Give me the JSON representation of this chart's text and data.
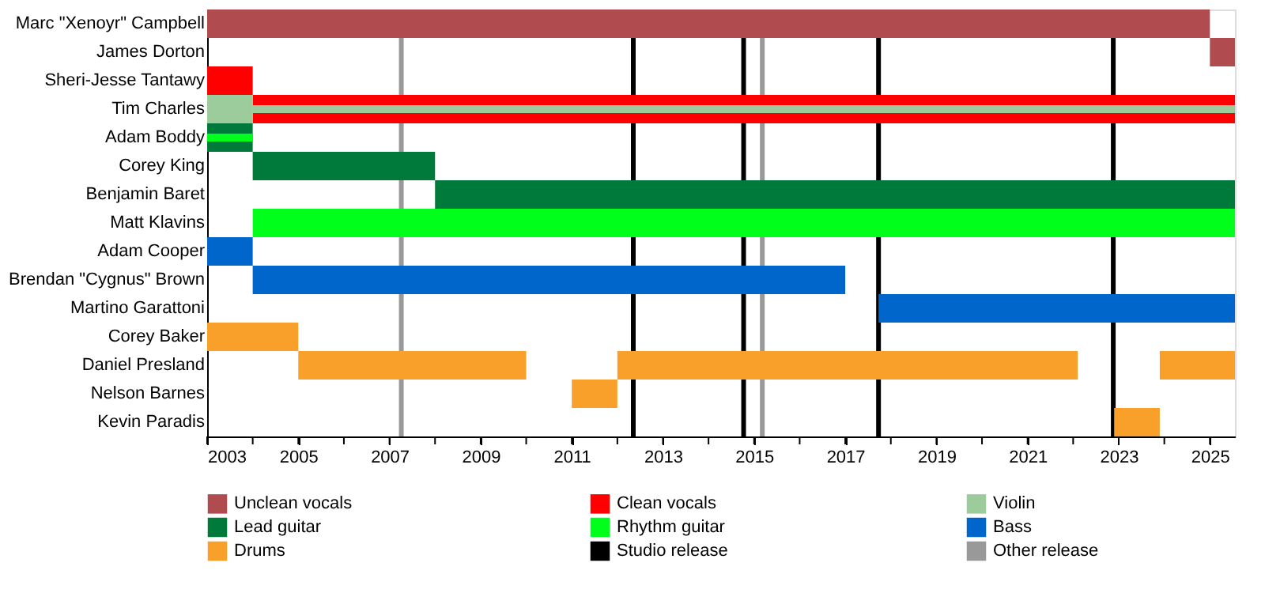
{
  "chart_data": {
    "type": "bar",
    "orientation": "horizontal",
    "legend": "bottom",
    "grid": false,
    "categories": [
      "Marc \"Xenoyr\" Campbell",
      "James Dorton",
      "Sheri-Jesse Tantawy",
      "Tim Charles",
      "Adam Boddy",
      "Corey King",
      "Benjamin Baret",
      "Matt Klavins",
      "Adam Cooper",
      "Brendan \"Cygnus\" Brown",
      "Martino Garattoni",
      "Corey Baker",
      "Daniel Presland",
      "Nelson Barnes",
      "Kevin Paradis"
    ],
    "xlim": [
      2003,
      2025.55
    ],
    "xticks": [
      2003,
      {
        "value": 2004,
        "label": null
      },
      2005,
      {
        "value": 2006,
        "label": null
      },
      2007,
      {
        "value": 2008,
        "label": null
      },
      2009,
      {
        "value": 2010,
        "label": null
      },
      2011,
      {
        "value": 2012,
        "label": null
      },
      2013,
      {
        "value": 2014,
        "label": null
      },
      2015,
      {
        "value": 2016,
        "label": null
      },
      2017,
      {
        "value": 2018,
        "label": null
      },
      2019,
      {
        "value": 2020,
        "label": null
      },
      2021,
      {
        "value": 2022,
        "label": null
      },
      2023,
      {
        "value": 2024,
        "label": null
      },
      2025
    ],
    "series": [
      {
        "name": "Unclean vocals",
        "color": "#b04c50",
        "base": [
          2003,
          2025.0,
          null,
          null,
          null,
          null,
          null,
          null,
          null,
          null,
          null,
          null,
          null,
          null,
          null
        ],
        "values": [
          22.0,
          0.55,
          null,
          null,
          null,
          null,
          null,
          null,
          null,
          null,
          null,
          null,
          null,
          null,
          null
        ]
      },
      {
        "name": "Clean vocals",
        "color": "#ff0000",
        "base": [
          null,
          null,
          2003,
          2004,
          null,
          null,
          null,
          null,
          null,
          null,
          null,
          null,
          null,
          null,
          null
        ],
        "values": [
          null,
          null,
          1.0,
          21.55,
          null,
          null,
          null,
          null,
          null,
          null,
          null,
          null,
          null,
          null,
          null
        ]
      },
      {
        "name": "Violin",
        "color": "#9ccc9c",
        "base": [
          null,
          null,
          null,
          2003,
          null,
          null,
          null,
          null,
          null,
          null,
          null,
          null,
          null,
          null,
          null
        ],
        "values": [
          null,
          null,
          null,
          1.0,
          null,
          null,
          null,
          null,
          null,
          null,
          null,
          null,
          null,
          null,
          null
        ]
      },
      {
        "color": "#9ccc9c",
        "base": [
          null,
          null,
          null,
          2004,
          null,
          null,
          null,
          null,
          null,
          null,
          null,
          null,
          null,
          null,
          null
        ],
        "values": [
          null,
          null,
          null,
          21.55,
          null,
          null,
          null,
          null,
          null,
          null,
          null,
          null,
          null,
          null,
          null
        ]
      },
      {
        "name": "Lead guitar",
        "color": "#007a3a",
        "base": [
          null,
          null,
          null,
          null,
          2003,
          2004,
          2008,
          null,
          null,
          null,
          null,
          null,
          null,
          null,
          null
        ],
        "values": [
          null,
          null,
          null,
          null,
          1.0,
          4.0,
          17.55,
          null,
          null,
          null,
          null,
          null,
          null,
          null,
          null
        ]
      },
      {
        "name": "Rhythm guitar",
        "color": "#00ff1a",
        "base": [
          null,
          null,
          null,
          null,
          2003,
          null,
          null,
          2004,
          null,
          null,
          null,
          null,
          null,
          null,
          null
        ],
        "values": [
          null,
          null,
          null,
          null,
          1.0,
          null,
          null,
          21.55,
          null,
          null,
          null,
          null,
          null,
          null,
          null
        ]
      },
      {
        "name": "Bass",
        "color": "#0066cc",
        "base": [
          null,
          null,
          null,
          null,
          null,
          null,
          null,
          null,
          2003,
          2004,
          2017.73,
          null,
          null,
          null,
          null
        ],
        "values": [
          null,
          null,
          null,
          null,
          null,
          null,
          null,
          null,
          1.0,
          13.0,
          7.82,
          null,
          null,
          null,
          null
        ]
      },
      {
        "name": "Drums",
        "color": "#f9a02a",
        "base": [
          null,
          null,
          null,
          null,
          null,
          null,
          null,
          null,
          null,
          null,
          null,
          2003,
          2005,
          2011,
          2022.9
        ],
        "values": [
          null,
          null,
          null,
          null,
          null,
          null,
          null,
          null,
          null,
          null,
          null,
          2.0,
          5.0,
          1.0,
          1.0
        ]
      },
      {
        "color": "#f9a02a",
        "base": [
          null,
          null,
          null,
          null,
          null,
          null,
          null,
          null,
          null,
          null,
          null,
          null,
          2012,
          null,
          null
        ],
        "values": [
          null,
          null,
          null,
          null,
          null,
          null,
          null,
          null,
          null,
          null,
          null,
          null,
          10.1,
          null,
          null
        ]
      },
      {
        "color": "#f9a02a",
        "base": [
          null,
          null,
          null,
          null,
          null,
          null,
          null,
          null,
          null,
          null,
          null,
          null,
          2023.9,
          null,
          null
        ],
        "values": [
          null,
          null,
          null,
          null,
          null,
          null,
          null,
          null,
          null,
          null,
          null,
          null,
          1.65,
          null,
          null
        ]
      }
    ],
    "ref_lines": [
      {
        "axis": "x",
        "value": 2012.35,
        "label": "Studio release",
        "color": "#000000"
      },
      {
        "axis": "x",
        "value": 2014.77,
        "label": null,
        "color": "#000000"
      },
      {
        "axis": "x",
        "value": 2017.73,
        "label": null,
        "color": "#000000"
      },
      {
        "axis": "x",
        "value": 2022.88,
        "label": null,
        "color": "#000000"
      },
      {
        "axis": "x",
        "value": 2007.26,
        "label": "Other release",
        "color": "#999999"
      },
      {
        "axis": "x",
        "value": 2015.18,
        "label": null,
        "color": "#999999"
      }
    ]
  }
}
